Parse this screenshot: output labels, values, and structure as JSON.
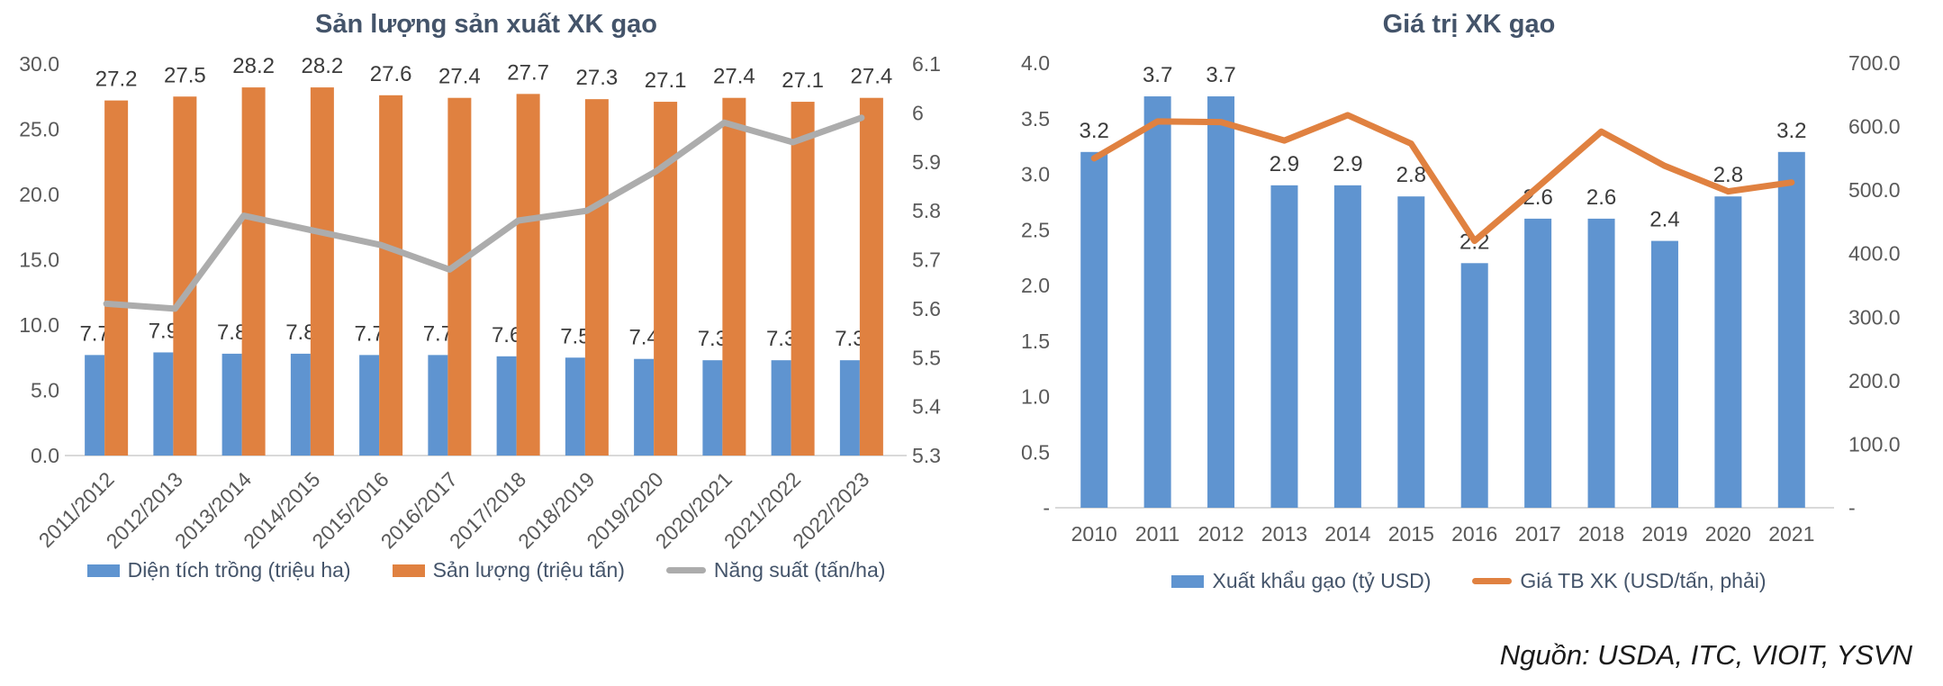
{
  "source_note": "Nguồn: USDA, ITC, VIOIT, YSVN",
  "colors": {
    "blue": "#5F94D0",
    "orange": "#E08140",
    "gray_line": "#ACACAC",
    "axis_text": "#595959",
    "title_text": "#44546A",
    "data_label": "#3B3B3B",
    "axis_line": "#D9D9D9"
  },
  "chart_data": [
    {
      "type": "bar",
      "title": "Sản lượng sản xuất XK gạo",
      "categories": [
        "2011/2012",
        "2012/2013",
        "2013/2014",
        "2014/2015",
        "2015/2016",
        "2016/2017",
        "2017/2018",
        "2018/2019",
        "2019/2020",
        "2020/2021",
        "2021/2022",
        "2022/2023"
      ],
      "series": [
        {
          "name": "Diện tích trồng (triệu ha)",
          "type": "bar",
          "axis": "left",
          "color": "#5F94D0",
          "data_labels": true,
          "values": [
            7.7,
            7.9,
            7.8,
            7.8,
            7.7,
            7.7,
            7.6,
            7.5,
            7.4,
            7.3,
            7.3,
            7.3
          ]
        },
        {
          "name": "Sản lượng (triệu tấn)",
          "type": "bar",
          "axis": "left",
          "color": "#E08140",
          "data_labels": true,
          "values": [
            27.2,
            27.5,
            28.2,
            28.2,
            27.6,
            27.4,
            27.7,
            27.3,
            27.1,
            27.4,
            27.1,
            27.4
          ]
        },
        {
          "name": "Năng suất (tấn/ha)",
          "type": "line",
          "axis": "right",
          "color": "#ACACAC",
          "data_labels": false,
          "values": [
            5.61,
            5.6,
            5.79,
            5.76,
            5.73,
            5.68,
            5.78,
            5.8,
            5.88,
            5.98,
            5.94,
            5.99
          ]
        }
      ],
      "left_axis": {
        "min": 0,
        "max": 30,
        "ticks": [
          {
            "value": 0,
            "label": "0.0"
          },
          {
            "value": 5,
            "label": "5.0"
          },
          {
            "value": 10,
            "label": "10.0"
          },
          {
            "value": 15,
            "label": "15.0"
          },
          {
            "value": 20,
            "label": "20.0"
          },
          {
            "value": 25,
            "label": "25.0"
          },
          {
            "value": 30,
            "label": "30.0"
          }
        ]
      },
      "right_axis": {
        "min": 5.3,
        "max": 6.1,
        "ticks": [
          {
            "value": 5.3,
            "label": "5.3"
          },
          {
            "value": 5.4,
            "label": "5.4"
          },
          {
            "value": 5.5,
            "label": "5.5"
          },
          {
            "value": 5.6,
            "label": "5.6"
          },
          {
            "value": 5.7,
            "label": "5.7"
          },
          {
            "value": 5.8,
            "label": "5.8"
          },
          {
            "value": 5.9,
            "label": "5.9"
          },
          {
            "value": 6.0,
            "label": "6"
          },
          {
            "value": 6.1,
            "label": "6.1"
          }
        ]
      },
      "grid": false,
      "legend_position": "bottom",
      "x_label_rotation": -45
    },
    {
      "type": "bar",
      "title": "Giá trị XK gạo",
      "categories": [
        "2010",
        "2011",
        "2012",
        "2013",
        "2014",
        "2015",
        "2016",
        "2017",
        "2018",
        "2019",
        "2020",
        "2021"
      ],
      "series": [
        {
          "name": "Xuất khẩu gạo (tỷ USD)",
          "type": "bar",
          "axis": "left",
          "color": "#5F94D0",
          "data_labels": true,
          "values": [
            3.2,
            3.7,
            3.7,
            2.9,
            2.9,
            2.8,
            2.2,
            2.6,
            2.6,
            2.4,
            2.8,
            3.2
          ]
        },
        {
          "name": "Giá TB XK (USD/tấn, phải)",
          "type": "line",
          "axis": "right",
          "color": "#E08140",
          "data_labels": false,
          "values": [
            550,
            608,
            607,
            578,
            618,
            573,
            420,
            505,
            592,
            538,
            498,
            512
          ]
        }
      ],
      "left_axis": {
        "min": 0,
        "max": 4,
        "ticks": [
          {
            "value": 0,
            "label": "-"
          },
          {
            "value": 0.5,
            "label": "0.5"
          },
          {
            "value": 1,
            "label": "1.0"
          },
          {
            "value": 1.5,
            "label": "1.5"
          },
          {
            "value": 2,
            "label": "2.0"
          },
          {
            "value": 2.5,
            "label": "2.5"
          },
          {
            "value": 3,
            "label": "3.0"
          },
          {
            "value": 3.5,
            "label": "3.5"
          },
          {
            "value": 4,
            "label": "4.0"
          }
        ]
      },
      "right_axis": {
        "min": 0,
        "max": 700,
        "ticks": [
          {
            "value": 0,
            "label": "-"
          },
          {
            "value": 100,
            "label": "100.0"
          },
          {
            "value": 200,
            "label": "200.0"
          },
          {
            "value": 300,
            "label": "300.0"
          },
          {
            "value": 400,
            "label": "400.0"
          },
          {
            "value": 500,
            "label": "500.0"
          },
          {
            "value": 600,
            "label": "600.0"
          },
          {
            "value": 700,
            "label": "700.0"
          }
        ]
      },
      "grid": false,
      "legend_position": "bottom",
      "x_label_rotation": 0
    }
  ]
}
